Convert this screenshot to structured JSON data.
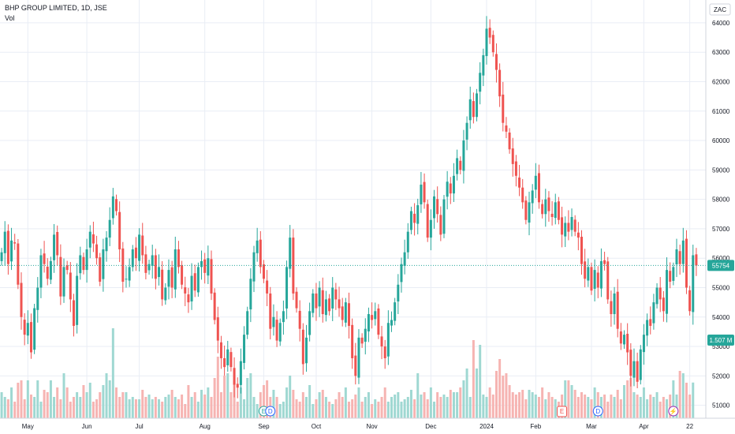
{
  "header": {
    "title": "BHP GROUP LIMITED, 1D, JSE",
    "volume_label": "Vol",
    "currency": "ZAC"
  },
  "price_badge": {
    "text": "55754",
    "color": "#26a69a"
  },
  "volume_badge": {
    "text": "1.507 M",
    "color": "#26a69a"
  },
  "markers": [
    {
      "label": "E",
      "month": "Sep",
      "color": "#26a69a"
    },
    {
      "label": "D",
      "month": "Sep",
      "color": "#2962ff"
    },
    {
      "label": "E",
      "month": "Feb",
      "color": "#ef5350"
    },
    {
      "label": "D",
      "month": "Mar",
      "color": "#2962ff"
    },
    {
      "label": "⚡",
      "month": "Apr",
      "color": "#9c27b0"
    }
  ],
  "colors": {
    "up": "#26a69a",
    "down": "#ef5350",
    "grid": "#e9edf5",
    "up_vol": "#9fd8d2",
    "down_vol": "#f6b4b2"
  },
  "chart_data": {
    "type": "candlestick",
    "title": "BHP GROUP LIMITED, 1D, JSE",
    "y_axis": {
      "ticks": [
        51000,
        52000,
        53000,
        54000,
        55000,
        56000,
        57000,
        58000,
        59000,
        60000,
        61000,
        62000,
        63000,
        64000
      ],
      "ylim": [
        50400,
        64400
      ]
    },
    "x_axis": {
      "ticks": [
        "May",
        "Jun",
        "Jul",
        "Aug",
        "Sep",
        "Oct",
        "Nov",
        "Dec",
        "2024",
        "Feb",
        "Mar",
        "Apr",
        "22"
      ]
    },
    "last_price": 55754,
    "last_volume": "1.507 M",
    "series": [
      {
        "name": "price",
        "closes": [
          56200,
          56900,
          55800,
          56600,
          56500,
          55100,
          54000,
          53400,
          53800,
          52800,
          54300,
          55000,
          56100,
          55800,
          55300,
          55900,
          56800,
          56100,
          54700,
          55700,
          55600,
          54600,
          53700,
          55400,
          56100,
          55600,
          56300,
          56900,
          56500,
          56000,
          55200,
          56300,
          56700,
          57300,
          58100,
          57600,
          56300,
          55200,
          55300,
          55700,
          56300,
          56000,
          56800,
          56100,
          55500,
          55800,
          56100,
          55300,
          55700,
          54600,
          55000,
          55600,
          55000,
          56300,
          55700,
          55100,
          54800,
          54500,
          55400,
          54900,
          55700,
          55900,
          55500,
          56000,
          54800,
          53900,
          53200,
          52600,
          52300,
          52900,
          52300,
          51700,
          51600,
          52500,
          53400,
          54200,
          55300,
          56200,
          56600,
          55700,
          55300,
          54800,
          53600,
          54000,
          53200,
          53800,
          54200,
          55700,
          56700,
          54800,
          54300,
          53600,
          52400,
          53300,
          54200,
          54800,
          54300,
          55000,
          54100,
          54600,
          54200,
          55000,
          54600,
          54300,
          53900,
          54500,
          53700,
          52600,
          52000,
          53300,
          53100,
          53600,
          54100,
          53900,
          54200,
          53400,
          53000,
          52600,
          53800,
          53900,
          54500,
          55100,
          55800,
          56200,
          56900,
          57600,
          57200,
          57800,
          58500,
          57900,
          56700,
          57300,
          58100,
          57500,
          56800,
          58000,
          58600,
          58200,
          58800,
          59400,
          59000,
          60000,
          60600,
          61400,
          60800,
          61600,
          62300,
          62900,
          63800,
          63500,
          63000,
          62400,
          61500,
          60600,
          60300,
          59700,
          59200,
          58800,
          58400,
          57900,
          57300,
          57900,
          58300,
          58800,
          57900,
          57500,
          58000,
          57600,
          57400,
          57900,
          57300,
          56800,
          57200,
          56900,
          57400,
          56900,
          56700,
          55800,
          55300,
          55700,
          54900,
          55600,
          55000,
          55900,
          55800,
          54600,
          54100,
          54800,
          53600,
          53100,
          53400,
          52800,
          52000,
          52500,
          51800,
          52900,
          53400,
          53900,
          53700,
          54500,
          55000,
          54600,
          54200,
          55600,
          55200,
          55700,
          56300,
          55800,
          56600,
          55000,
          54200,
          56100,
          55754
        ]
      },
      {
        "name": "volume",
        "values": [
          1.1,
          0.9,
          0.8,
          1.3,
          0.7,
          1.5,
          1.6,
          0.8,
          1.6,
          1.0,
          0.9,
          1.6,
          0.7,
          1.2,
          1.1,
          1.6,
          0.9,
          1.3,
          0.8,
          1.9,
          1.3,
          0.7,
          0.9,
          1.1,
          0.9,
          1.4,
          1.1,
          1.5,
          0.7,
          0.8,
          1.1,
          1.4,
          1.9,
          1.6,
          3.8,
          1.3,
          0.9,
          1.1,
          1.1,
          0.8,
          0.9,
          0.8,
          0.8,
          1.2,
          0.9,
          1.0,
          0.8,
          0.9,
          0.8,
          0.7,
          0.9,
          1.0,
          1.2,
          0.9,
          0.8,
          1.0,
          0.6,
          1.4,
          0.9,
          1.1,
          0.7,
          1.2,
          1.0,
          1.3,
          0.9,
          1.7,
          2.6,
          1.1,
          1.8,
          1.9,
          1.1,
          1.6,
          0.7,
          1.3,
          0.8,
          1.7,
          1.9,
          0.9,
          0.6,
          1.1,
          1.4,
          1.6,
          0.9,
          1.2,
          0.9,
          0.6,
          0.7,
          1.3,
          1.8,
          1.2,
          0.8,
          0.7,
          1.1,
          0.9,
          1.4,
          0.6,
          0.8,
          1.1,
          1.2,
          0.9,
          0.7,
          0.6,
          0.8,
          1.1,
          0.9,
          1.3,
          0.7,
          0.8,
          1.0,
          1.3,
          0.7,
          0.9,
          1.1,
          0.6,
          0.8,
          0.7,
          0.9,
          1.3,
          0.7,
          0.9,
          1.0,
          1.1,
          0.7,
          0.8,
          0.9,
          1.2,
          0.8,
          1.9,
          1.0,
          1.1,
          0.8,
          1.3,
          0.7,
          1.1,
          0.9,
          1.0,
          0.9,
          1.2,
          1.1,
          1.1,
          1.3,
          1.6,
          2.1,
          0.9,
          3.3,
          2.1,
          3.1,
          1.0,
          0.9,
          1.3,
          1.0,
          2.0,
          2.5,
          1.8,
          1.9,
          1.4,
          1.1,
          1.0,
          1.1,
          1.2,
          0.8,
          1.2,
          1.1,
          1.0,
          0.9,
          1.3,
          0.8,
          1.1,
          0.9,
          0.8,
          0.7,
          1.0,
          1.6,
          1.6,
          1.4,
          1.2,
          0.9,
          1.1,
          1.0,
          0.9,
          0.8,
          1.3,
          1.1,
          0.9,
          1.0,
          0.7,
          1.0,
          0.9,
          1.2,
          0.8,
          1.4,
          1.6,
          1.7,
          1.1,
          1.0,
          0.9,
          1.3,
          0.8,
          1.0,
          0.9,
          1.1,
          0.7,
          0.9,
          0.8,
          1.0,
          1.6,
          1.0,
          2.0,
          1.9,
          1.5,
          1.0,
          1.507
        ]
      }
    ]
  }
}
